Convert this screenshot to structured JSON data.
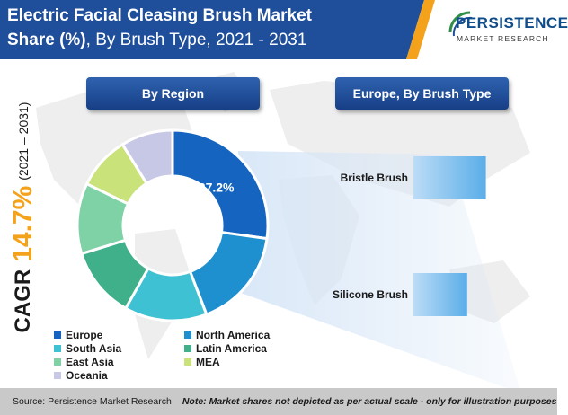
{
  "header": {
    "title_line1": "Electric Facial Cleasing Brush Market",
    "title_line2_bold": "Share (%)",
    "title_line2_rest": ", By Brush Type, 2021 - 2031"
  },
  "logo": {
    "name": "PERSISTENCE",
    "sub": "MARKET RESEARCH"
  },
  "panels": {
    "region_label": "By Region",
    "type_label": "Europe, By Brush Type"
  },
  "cagr": {
    "label": "CAGR",
    "value": "14.7%",
    "years": "(2021 – 2031)"
  },
  "footer": {
    "source": "Source: Persistence Market Research",
    "note": "Note: Market shares not depicted as per actual scale - only for illustration purposes"
  },
  "colors": {
    "title_banner": "#1f4e9a",
    "accent_orange": "#f4a11c",
    "pill": "#1f4e9a",
    "footer_bg": "#c9c9c9"
  },
  "chart_data": [
    {
      "type": "pie",
      "title": "By Region",
      "categories": [
        "Europe",
        "North America",
        "South Asia",
        "Latin America",
        "East Asia",
        "MEA",
        "Oceania"
      ],
      "values": [
        27.2,
        17,
        14,
        12,
        12,
        9,
        8.8
      ],
      "labels": [
        "27.2%",
        "",
        "",
        "",
        "",
        "",
        ""
      ],
      "colors": [
        "#1565c0",
        "#1e8fcf",
        "#3ec1d3",
        "#3fb08a",
        "#7fd1a6",
        "#c9e27a",
        "#c7c7e6"
      ],
      "legend": [
        "Europe",
        "North America",
        "South Asia",
        "Latin America",
        "East Asia",
        "MEA",
        "Oceania"
      ],
      "legend_placement": "bottom"
    },
    {
      "type": "bar",
      "orientation": "horizontal",
      "title": "Europe, By Brush Type",
      "categories": [
        "Bristle Brush",
        "Silicone Brush"
      ],
      "values": [
        62,
        46
      ],
      "xlim": [
        0,
        100
      ],
      "grid": false
    }
  ]
}
